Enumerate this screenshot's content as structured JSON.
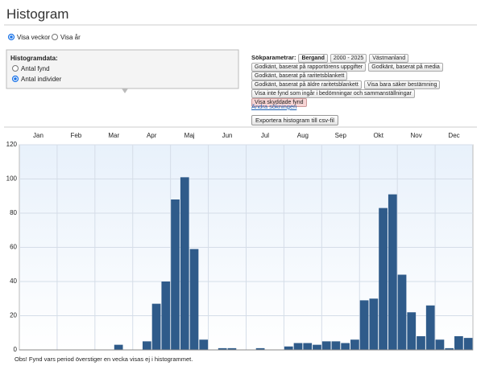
{
  "header": {
    "title": "Histogram"
  },
  "view_options": {
    "options": [
      "Visa veckor",
      "Visa år"
    ],
    "selected_index": 0
  },
  "histogram_data": {
    "label": "Histogramdata:",
    "options": [
      "Antal fynd",
      "Antal individer"
    ],
    "selected_index": 1
  },
  "search": {
    "label": "Sökparametrar:",
    "tag_rows": [
      [
        "Bergand",
        "2000 - 2025",
        "Västmanland"
      ],
      [
        "Godkänt, baserat på rapportörens uppgifter",
        "Godkänt, baserat på media"
      ],
      [
        "Godkänt, baserat på raritetsblankett"
      ],
      [
        "Godkänt, baserat på äldre raritetsblankett",
        "Visa bara säker bestämning"
      ],
      [
        "Visa inte fynd som ingår i bedömningar och sammanställningar"
      ],
      [
        "Visa skyddade fynd"
      ]
    ],
    "edit_link": "Ändra sökningen",
    "export_button": "Exportera histogram till csv-fil"
  },
  "chart_data": {
    "type": "bar",
    "months": [
      "Jan",
      "Feb",
      "Mar",
      "Apr",
      "Maj",
      "Jun",
      "Jul",
      "Aug",
      "Sep",
      "Okt",
      "Nov",
      "Dec"
    ],
    "categories": [
      null,
      null,
      null,
      null,
      null,
      null,
      null,
      null,
      null,
      null,
      null,
      null,
      null,
      null,
      null,
      null,
      null,
      null,
      null,
      null,
      null,
      null,
      null,
      null,
      null,
      null,
      null,
      null,
      null,
      null,
      null,
      null,
      null,
      null,
      null,
      null,
      null,
      null,
      null,
      null,
      null,
      null,
      null,
      null,
      null,
      null,
      null,
      null
    ],
    "values": [
      0,
      0,
      0,
      0,
      0,
      0,
      0,
      0,
      0,
      0,
      3,
      0,
      0,
      5,
      27,
      40,
      88,
      101,
      59,
      6,
      0,
      1,
      1,
      0,
      0,
      1,
      0,
      0,
      2,
      4,
      4,
      3,
      5,
      5,
      4,
      6,
      29,
      30,
      83,
      91,
      44,
      22,
      8,
      26,
      6,
      1,
      8,
      7
    ],
    "color": "#2f5b8a",
    "ylim": [
      0,
      120
    ],
    "yticks": [
      0,
      20,
      40,
      60,
      80,
      100,
      120
    ],
    "grid": true
  },
  "note": "Obs! Fynd vars period överstiger en vecka visas ej i histogrammet."
}
